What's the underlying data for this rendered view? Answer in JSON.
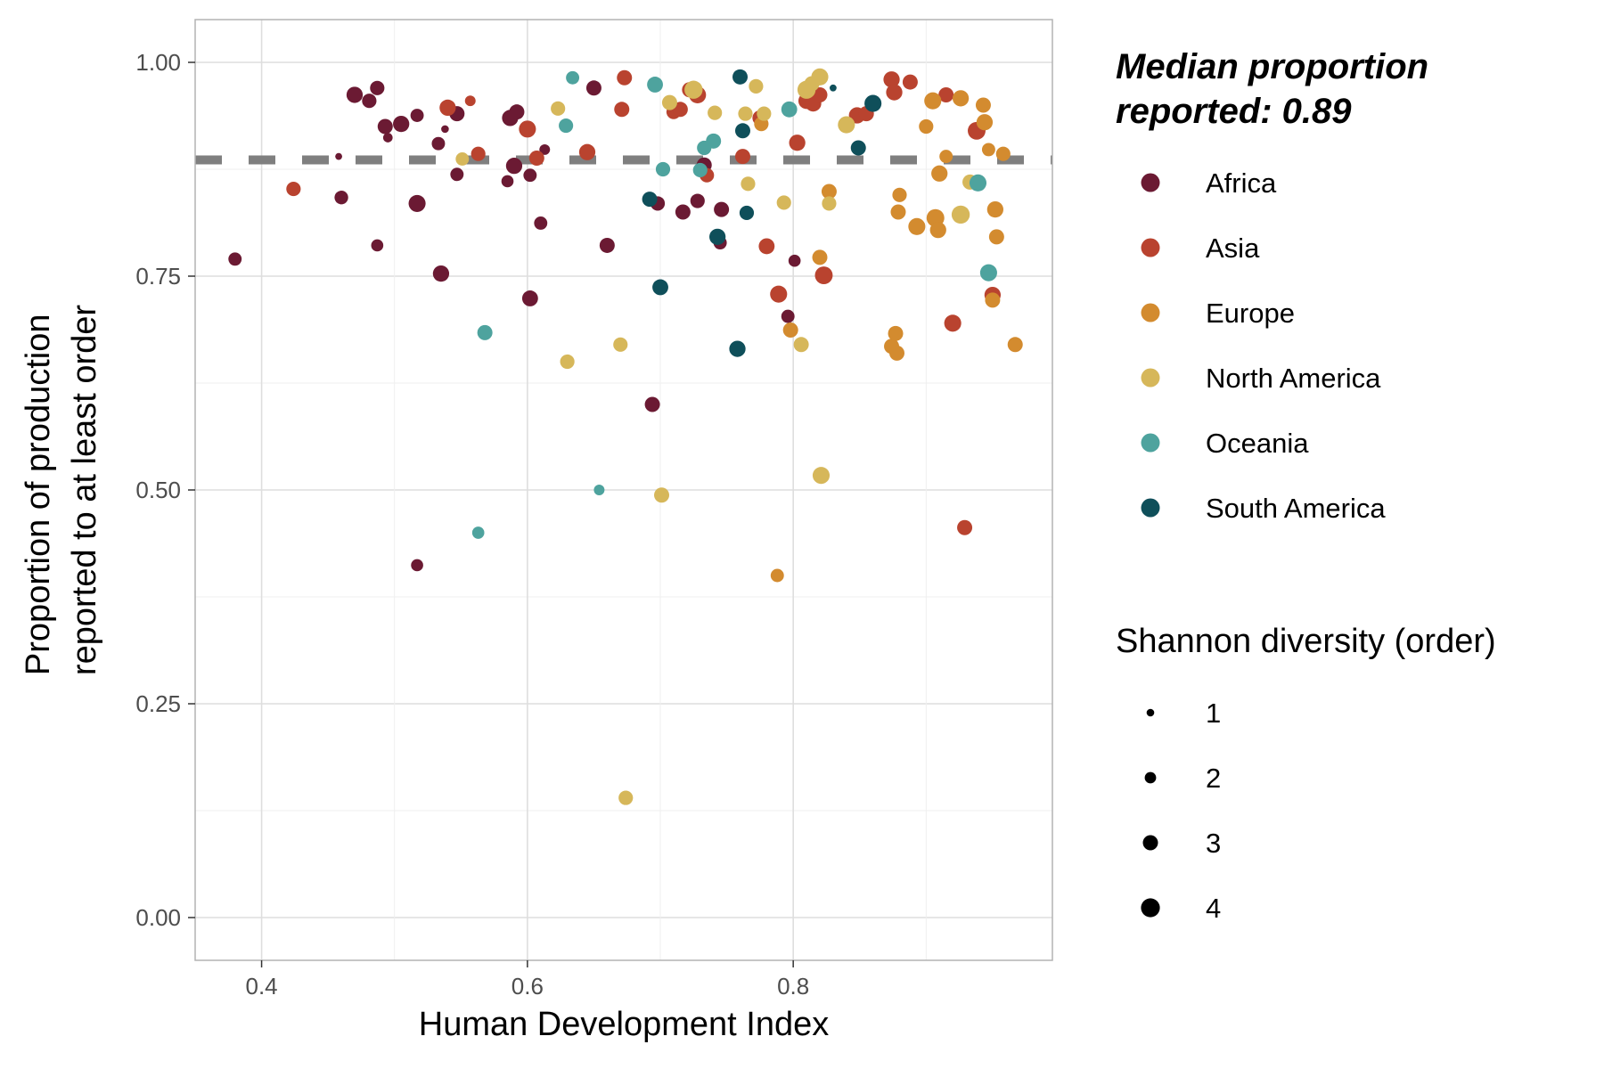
{
  "chart_data": {
    "type": "scatter",
    "xlabel": "Human Development Index",
    "ylabel_lines": [
      "Proportion of production",
      "reported to at least order"
    ],
    "xlim": [
      0.35,
      0.995
    ],
    "ylim": [
      -0.05,
      1.05
    ],
    "x_ticks": [
      0.4,
      0.6,
      0.8
    ],
    "x_tick_labels": [
      "0.4",
      "0.6",
      "0.8"
    ],
    "y_ticks": [
      0.0,
      0.25,
      0.5,
      0.75,
      1.0
    ],
    "y_tick_labels": [
      "0.00",
      "0.25",
      "0.50",
      "0.75",
      "1.00"
    ],
    "grid": true,
    "median_line": 0.886,
    "median_label_lines": [
      "Median proportion",
      "reported: 0.89"
    ],
    "color_legend": [
      {
        "name": "Africa",
        "color": "#6b1a33"
      },
      {
        "name": "Asia",
        "color": "#b9432f"
      },
      {
        "name": "Europe",
        "color": "#d38b2f"
      },
      {
        "name": "North America",
        "color": "#d6b75a"
      },
      {
        "name": "Oceania",
        "color": "#4ea39e"
      },
      {
        "name": "South America",
        "color": "#0f4f5a"
      }
    ],
    "size_legend_title": "Shannon diversity (order)",
    "size_legend": [
      {
        "label": "1",
        "value": 1
      },
      {
        "label": "2",
        "value": 2
      },
      {
        "label": "3",
        "value": 3
      },
      {
        "label": "4",
        "value": 4
      }
    ],
    "legend_position": "right",
    "points": [
      {
        "region": "Africa",
        "x": 0.38,
        "y": 0.77,
        "size": 2.5
      },
      {
        "region": "Africa",
        "x": 0.46,
        "y": 0.842,
        "size": 2.6
      },
      {
        "region": "Africa",
        "x": 0.458,
        "y": 0.89,
        "size": 0.8
      },
      {
        "region": "Africa",
        "x": 0.47,
        "y": 0.962,
        "size": 3.3
      },
      {
        "region": "Africa",
        "x": 0.481,
        "y": 0.955,
        "size": 2.8
      },
      {
        "region": "Africa",
        "x": 0.487,
        "y": 0.97,
        "size": 2.8
      },
      {
        "region": "Africa",
        "x": 0.493,
        "y": 0.925,
        "size": 3.0
      },
      {
        "region": "Africa",
        "x": 0.495,
        "y": 0.912,
        "size": 1.5
      },
      {
        "region": "Africa",
        "x": 0.487,
        "y": 0.786,
        "size": 2.2
      },
      {
        "region": "Africa",
        "x": 0.505,
        "y": 0.928,
        "size": 3.3
      },
      {
        "region": "Africa",
        "x": 0.517,
        "y": 0.938,
        "size": 2.5
      },
      {
        "region": "Africa",
        "x": 0.517,
        "y": 0.835,
        "size": 3.5
      },
      {
        "region": "Africa",
        "x": 0.517,
        "y": 0.412,
        "size": 2.2
      },
      {
        "region": "Africa",
        "x": 0.533,
        "y": 0.905,
        "size": 2.5
      },
      {
        "region": "Africa",
        "x": 0.535,
        "y": 0.753,
        "size": 3.3
      },
      {
        "region": "Africa",
        "x": 0.538,
        "y": 0.922,
        "size": 1.0
      },
      {
        "region": "Africa",
        "x": 0.547,
        "y": 0.94,
        "size": 3.0
      },
      {
        "region": "Africa",
        "x": 0.547,
        "y": 0.869,
        "size": 2.5
      },
      {
        "region": "Africa",
        "x": 0.585,
        "y": 0.861,
        "size": 2.2
      },
      {
        "region": "Africa",
        "x": 0.587,
        "y": 0.935,
        "size": 3.3
      },
      {
        "region": "Africa",
        "x": 0.592,
        "y": 0.942,
        "size": 3.0
      },
      {
        "region": "Africa",
        "x": 0.59,
        "y": 0.879,
        "size": 3.3
      },
      {
        "region": "Africa",
        "x": 0.602,
        "y": 0.868,
        "size": 2.5
      },
      {
        "region": "Africa",
        "x": 0.602,
        "y": 0.724,
        "size": 3.2
      },
      {
        "region": "Africa",
        "x": 0.61,
        "y": 0.812,
        "size": 2.5
      },
      {
        "region": "Africa",
        "x": 0.613,
        "y": 0.898,
        "size": 1.8
      },
      {
        "region": "Africa",
        "x": 0.65,
        "y": 0.97,
        "size": 3.0
      },
      {
        "region": "Africa",
        "x": 0.66,
        "y": 0.786,
        "size": 3.0
      },
      {
        "region": "Africa",
        "x": 0.694,
        "y": 0.6,
        "size": 3.0
      },
      {
        "region": "Africa",
        "x": 0.698,
        "y": 0.835,
        "size": 2.8
      },
      {
        "region": "Africa",
        "x": 0.717,
        "y": 0.825,
        "size": 3.0
      },
      {
        "region": "Africa",
        "x": 0.728,
        "y": 0.838,
        "size": 2.8
      },
      {
        "region": "Africa",
        "x": 0.733,
        "y": 0.88,
        "size": 3.0
      },
      {
        "region": "Africa",
        "x": 0.746,
        "y": 0.828,
        "size": 3.0
      },
      {
        "region": "Africa",
        "x": 0.745,
        "y": 0.789,
        "size": 2.5
      },
      {
        "region": "Africa",
        "x": 0.796,
        "y": 0.703,
        "size": 2.5
      },
      {
        "region": "Africa",
        "x": 0.801,
        "y": 0.768,
        "size": 2.2
      },
      {
        "region": "Asia",
        "x": 0.424,
        "y": 0.852,
        "size": 2.8
      },
      {
        "region": "Asia",
        "x": 0.54,
        "y": 0.947,
        "size": 3.3
      },
      {
        "region": "Asia",
        "x": 0.557,
        "y": 0.955,
        "size": 1.8
      },
      {
        "region": "Asia",
        "x": 0.563,
        "y": 0.893,
        "size": 2.8
      },
      {
        "region": "Asia",
        "x": 0.6,
        "y": 0.922,
        "size": 3.5
      },
      {
        "region": "Asia",
        "x": 0.607,
        "y": 0.888,
        "size": 3.0
      },
      {
        "region": "Asia",
        "x": 0.645,
        "y": 0.895,
        "size": 3.3
      },
      {
        "region": "Asia",
        "x": 0.671,
        "y": 0.945,
        "size": 3.0
      },
      {
        "region": "Asia",
        "x": 0.673,
        "y": 0.982,
        "size": 3.0
      },
      {
        "region": "Asia",
        "x": 0.71,
        "y": 0.942,
        "size": 2.8
      },
      {
        "region": "Asia",
        "x": 0.715,
        "y": 0.945,
        "size": 3.0
      },
      {
        "region": "Asia",
        "x": 0.722,
        "y": 0.968,
        "size": 3.0
      },
      {
        "region": "Asia",
        "x": 0.728,
        "y": 0.962,
        "size": 3.5
      },
      {
        "region": "Asia",
        "x": 0.735,
        "y": 0.868,
        "size": 2.8
      },
      {
        "region": "Asia",
        "x": 0.762,
        "y": 0.89,
        "size": 3.0
      },
      {
        "region": "Asia",
        "x": 0.775,
        "y": 0.935,
        "size": 3.0
      },
      {
        "region": "Asia",
        "x": 0.78,
        "y": 0.785,
        "size": 3.2
      },
      {
        "region": "Asia",
        "x": 0.789,
        "y": 0.729,
        "size": 3.5
      },
      {
        "region": "Asia",
        "x": 0.803,
        "y": 0.906,
        "size": 3.3
      },
      {
        "region": "Asia",
        "x": 0.81,
        "y": 0.955,
        "size": 3.3
      },
      {
        "region": "Asia",
        "x": 0.815,
        "y": 0.952,
        "size": 3.3
      },
      {
        "region": "Asia",
        "x": 0.82,
        "y": 0.962,
        "size": 3.0
      },
      {
        "region": "Asia",
        "x": 0.823,
        "y": 0.751,
        "size": 3.7
      },
      {
        "region": "Asia",
        "x": 0.848,
        "y": 0.938,
        "size": 3.3
      },
      {
        "region": "Asia",
        "x": 0.855,
        "y": 0.94,
        "size": 3.0
      },
      {
        "region": "Asia",
        "x": 0.874,
        "y": 0.98,
        "size": 3.3
      },
      {
        "region": "Asia",
        "x": 0.876,
        "y": 0.965,
        "size": 3.3
      },
      {
        "region": "Asia",
        "x": 0.888,
        "y": 0.977,
        "size": 3.0
      },
      {
        "region": "Asia",
        "x": 0.915,
        "y": 0.962,
        "size": 3.0
      },
      {
        "region": "Asia",
        "x": 0.92,
        "y": 0.695,
        "size": 3.5
      },
      {
        "region": "Asia",
        "x": 0.929,
        "y": 0.456,
        "size": 3.0
      },
      {
        "region": "Asia",
        "x": 0.938,
        "y": 0.92,
        "size": 3.7
      },
      {
        "region": "Asia",
        "x": 0.95,
        "y": 0.728,
        "size": 3.3
      },
      {
        "region": "Europe",
        "x": 0.788,
        "y": 0.4,
        "size": 2.5
      },
      {
        "region": "Europe",
        "x": 0.776,
        "y": 0.928,
        "size": 2.8
      },
      {
        "region": "Europe",
        "x": 0.798,
        "y": 0.687,
        "size": 3.0
      },
      {
        "region": "Europe",
        "x": 0.82,
        "y": 0.772,
        "size": 3.0
      },
      {
        "region": "Europe",
        "x": 0.827,
        "y": 0.849,
        "size": 3.0
      },
      {
        "region": "Europe",
        "x": 0.874,
        "y": 0.668,
        "size": 3.0
      },
      {
        "region": "Europe",
        "x": 0.877,
        "y": 0.683,
        "size": 3.0
      },
      {
        "region": "Europe",
        "x": 0.878,
        "y": 0.66,
        "size": 3.0
      },
      {
        "region": "Europe",
        "x": 0.879,
        "y": 0.825,
        "size": 3.0
      },
      {
        "region": "Europe",
        "x": 0.88,
        "y": 0.845,
        "size": 2.8
      },
      {
        "region": "Europe",
        "x": 0.893,
        "y": 0.808,
        "size": 3.5
      },
      {
        "region": "Europe",
        "x": 0.9,
        "y": 0.925,
        "size": 2.8
      },
      {
        "region": "Europe",
        "x": 0.905,
        "y": 0.955,
        "size": 3.5
      },
      {
        "region": "Europe",
        "x": 0.907,
        "y": 0.818,
        "size": 3.7
      },
      {
        "region": "Europe",
        "x": 0.909,
        "y": 0.804,
        "size": 3.3
      },
      {
        "region": "Europe",
        "x": 0.91,
        "y": 0.87,
        "size": 3.3
      },
      {
        "region": "Europe",
        "x": 0.915,
        "y": 0.89,
        "size": 2.5
      },
      {
        "region": "Europe",
        "x": 0.926,
        "y": 0.958,
        "size": 3.3
      },
      {
        "region": "Europe",
        "x": 0.943,
        "y": 0.95,
        "size": 3.0
      },
      {
        "region": "Europe",
        "x": 0.944,
        "y": 0.93,
        "size": 3.3
      },
      {
        "region": "Europe",
        "x": 0.947,
        "y": 0.898,
        "size": 2.5
      },
      {
        "region": "Europe",
        "x": 0.95,
        "y": 0.722,
        "size": 3.0
      },
      {
        "region": "Europe",
        "x": 0.952,
        "y": 0.828,
        "size": 3.3
      },
      {
        "region": "Europe",
        "x": 0.953,
        "y": 0.796,
        "size": 3.0
      },
      {
        "region": "Europe",
        "x": 0.958,
        "y": 0.893,
        "size": 2.8
      },
      {
        "region": "Europe",
        "x": 0.967,
        "y": 0.67,
        "size": 3.0
      },
      {
        "region": "North America",
        "x": 0.551,
        "y": 0.887,
        "size": 2.5
      },
      {
        "region": "North America",
        "x": 0.623,
        "y": 0.946,
        "size": 2.8
      },
      {
        "region": "North America",
        "x": 0.63,
        "y": 0.65,
        "size": 2.8
      },
      {
        "region": "North America",
        "x": 0.67,
        "y": 0.67,
        "size": 2.8
      },
      {
        "region": "North America",
        "x": 0.674,
        "y": 0.14,
        "size": 2.8
      },
      {
        "region": "North America",
        "x": 0.701,
        "y": 0.494,
        "size": 3.0
      },
      {
        "region": "North America",
        "x": 0.707,
        "y": 0.953,
        "size": 3.0
      },
      {
        "region": "North America",
        "x": 0.725,
        "y": 0.968,
        "size": 3.8
      },
      {
        "region": "North America",
        "x": 0.741,
        "y": 0.941,
        "size": 2.8
      },
      {
        "region": "North America",
        "x": 0.764,
        "y": 0.94,
        "size": 2.8
      },
      {
        "region": "North America",
        "x": 0.766,
        "y": 0.858,
        "size": 2.8
      },
      {
        "region": "North America",
        "x": 0.772,
        "y": 0.972,
        "size": 2.8
      },
      {
        "region": "North America",
        "x": 0.778,
        "y": 0.94,
        "size": 2.8
      },
      {
        "region": "North America",
        "x": 0.793,
        "y": 0.836,
        "size": 2.8
      },
      {
        "region": "North America",
        "x": 0.806,
        "y": 0.67,
        "size": 3.0
      },
      {
        "region": "North America",
        "x": 0.81,
        "y": 0.968,
        "size": 3.8
      },
      {
        "region": "North America",
        "x": 0.814,
        "y": 0.975,
        "size": 3.0
      },
      {
        "region": "North America",
        "x": 0.82,
        "y": 0.983,
        "size": 3.5
      },
      {
        "region": "North America",
        "x": 0.821,
        "y": 0.517,
        "size": 3.5
      },
      {
        "region": "North America",
        "x": 0.827,
        "y": 0.835,
        "size": 2.8
      },
      {
        "region": "North America",
        "x": 0.84,
        "y": 0.927,
        "size": 3.5
      },
      {
        "region": "North America",
        "x": 0.926,
        "y": 0.822,
        "size": 3.8
      },
      {
        "region": "North America",
        "x": 0.933,
        "y": 0.86,
        "size": 3.0
      },
      {
        "region": "Oceania",
        "x": 0.563,
        "y": 0.45,
        "size": 2.2
      },
      {
        "region": "Oceania",
        "x": 0.568,
        "y": 0.684,
        "size": 3.0
      },
      {
        "region": "Oceania",
        "x": 0.629,
        "y": 0.926,
        "size": 2.8
      },
      {
        "region": "Oceania",
        "x": 0.634,
        "y": 0.982,
        "size": 2.5
      },
      {
        "region": "Oceania",
        "x": 0.654,
        "y": 0.5,
        "size": 1.8
      },
      {
        "region": "Oceania",
        "x": 0.696,
        "y": 0.974,
        "size": 3.2
      },
      {
        "region": "Oceania",
        "x": 0.702,
        "y": 0.875,
        "size": 2.8
      },
      {
        "region": "Oceania",
        "x": 0.73,
        "y": 0.874,
        "size": 2.8
      },
      {
        "region": "Oceania",
        "x": 0.733,
        "y": 0.9,
        "size": 2.8
      },
      {
        "region": "Oceania",
        "x": 0.74,
        "y": 0.908,
        "size": 3.0
      },
      {
        "region": "Oceania",
        "x": 0.797,
        "y": 0.945,
        "size": 3.2
      },
      {
        "region": "Oceania",
        "x": 0.939,
        "y": 0.859,
        "size": 3.5
      },
      {
        "region": "Oceania",
        "x": 0.947,
        "y": 0.754,
        "size": 3.5
      },
      {
        "region": "South America",
        "x": 0.692,
        "y": 0.84,
        "size": 3.0
      },
      {
        "region": "South America",
        "x": 0.7,
        "y": 0.737,
        "size": 3.2
      },
      {
        "region": "South America",
        "x": 0.743,
        "y": 0.796,
        "size": 3.3
      },
      {
        "region": "South America",
        "x": 0.758,
        "y": 0.665,
        "size": 3.3
      },
      {
        "region": "South America",
        "x": 0.76,
        "y": 0.983,
        "size": 3.0
      },
      {
        "region": "South America",
        "x": 0.762,
        "y": 0.92,
        "size": 3.0
      },
      {
        "region": "South America",
        "x": 0.765,
        "y": 0.824,
        "size": 2.8
      },
      {
        "region": "South America",
        "x": 0.83,
        "y": 0.97,
        "size": 0.8
      },
      {
        "region": "South America",
        "x": 0.849,
        "y": 0.9,
        "size": 3.0
      },
      {
        "region": "South America",
        "x": 0.86,
        "y": 0.952,
        "size": 3.5
      }
    ]
  }
}
